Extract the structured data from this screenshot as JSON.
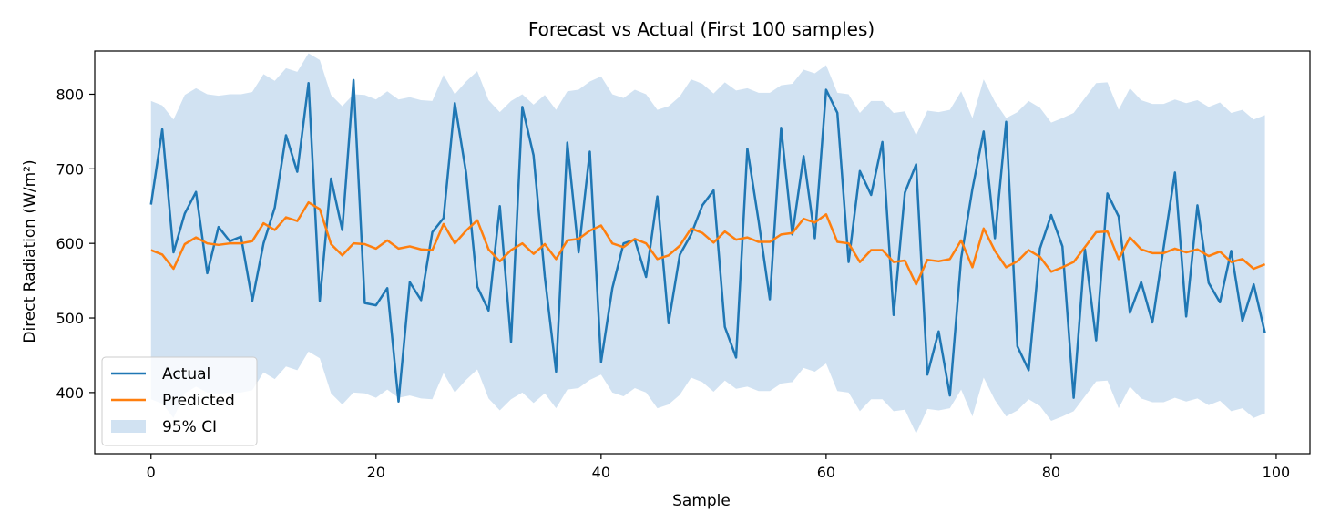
{
  "chart_data": {
    "type": "line",
    "title": "Forecast vs Actual (First 100 samples)",
    "xlabel": "Sample",
    "ylabel": "Direct Radiation (W/m²)",
    "xlim": [
      -5,
      103
    ],
    "ylim": [
      318,
      858
    ],
    "xticks": [
      0,
      20,
      40,
      60,
      80,
      100
    ],
    "yticks": [
      400,
      500,
      600,
      700,
      800
    ],
    "grid": false,
    "legend_position": "lower-left",
    "colors": {
      "actual": "#1f77b4",
      "predicted": "#ff7f0e",
      "ci": "#c6dbef"
    },
    "legend": [
      {
        "key": "actual",
        "label": "Actual"
      },
      {
        "key": "predicted",
        "label": "Predicted"
      },
      {
        "key": "ci",
        "label": "95% CI"
      }
    ],
    "ci_half_width": 200,
    "series": [
      {
        "name": "Actual",
        "values": [
          652,
          753,
          588,
          640,
          669,
          560,
          622,
          603,
          609,
          523,
          600,
          648,
          745,
          696,
          815,
          523,
          687,
          618,
          819,
          520,
          517,
          540,
          388,
          548,
          524,
          615,
          634,
          788,
          695,
          542,
          510,
          650,
          468,
          783,
          718,
          555,
          428,
          735,
          588,
          723,
          441,
          540,
          600,
          605,
          555,
          663,
          493,
          585,
          612,
          651,
          671,
          488,
          447,
          727,
          630,
          525,
          755,
          612,
          717,
          607,
          806,
          775,
          575,
          697,
          665,
          736,
          504,
          668,
          706,
          424,
          482,
          396,
          580,
          673,
          750,
          607,
          763,
          462,
          430,
          593,
          638,
          596,
          393,
          592,
          470,
          667,
          636,
          507,
          548,
          494,
          595,
          695,
          502,
          651,
          547,
          521,
          590,
          496,
          545,
          480
        ]
      },
      {
        "name": "Predicted",
        "values": [
          591,
          585,
          566,
          599,
          608,
          600,
          598,
          600,
          600,
          603,
          627,
          618,
          635,
          630,
          655,
          646,
          599,
          584,
          600,
          599,
          593,
          604,
          593,
          596,
          592,
          591,
          626,
          600,
          617,
          631,
          592,
          576,
          591,
          600,
          586,
          599,
          579,
          604,
          606,
          617,
          624,
          600,
          595,
          606,
          600,
          579,
          584,
          597,
          620,
          614,
          601,
          616,
          605,
          608,
          602,
          602,
          612,
          614,
          633,
          628,
          639,
          602,
          600,
          575,
          591,
          591,
          575,
          577,
          545,
          578,
          576,
          579,
          604,
          568,
          620,
          590,
          568,
          576,
          591,
          582,
          562,
          568,
          575,
          595,
          615,
          616,
          579,
          608,
          592,
          587,
          587,
          593,
          588,
          592,
          583,
          589,
          575,
          579,
          566,
          572
        ]
      }
    ]
  }
}
